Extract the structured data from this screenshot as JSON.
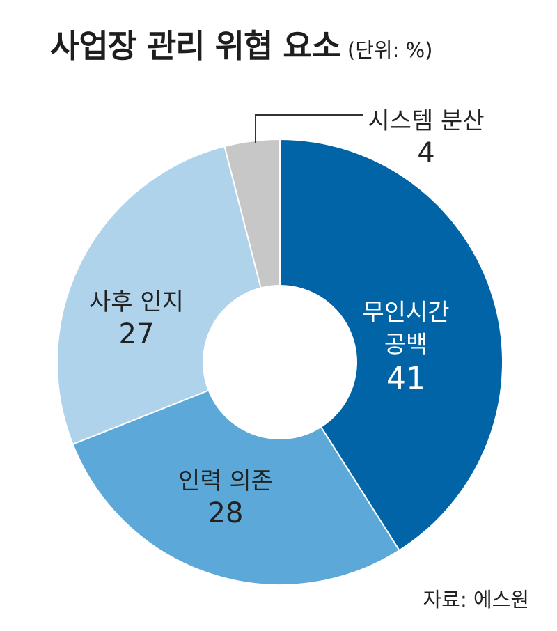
{
  "colors": {
    "dark_blue": "#0064a7",
    "mid_blue": "#5ca8d8",
    "light_blue": "#aed3eb",
    "gray": "#c7c7c7",
    "text_dark": "#222222",
    "text_light": "#ffffff"
  },
  "chart_data": {
    "type": "pie",
    "variant": "donut",
    "title": "사업장 관리 위협 요소",
    "unit": "(단위: %)",
    "source": "자료: 에스원",
    "slices": [
      {
        "label_lines": [
          "무인시간",
          "공백"
        ],
        "value": 41,
        "value_label": "41",
        "color": "#0064a7",
        "text_color": "#ffffff"
      },
      {
        "label_lines": [
          "인력 의존"
        ],
        "value": 28,
        "value_label": "28",
        "color": "#5ca8d8",
        "text_color": "#222222"
      },
      {
        "label_lines": [
          "사후 인지"
        ],
        "value": 27,
        "value_label": "27",
        "color": "#aed3eb",
        "text_color": "#222222"
      },
      {
        "label_lines": [
          "시스템 분산"
        ],
        "value": 4,
        "value_label": "4",
        "color": "#c7c7c7",
        "text_color": "#222222"
      }
    ],
    "start_angle_deg": 0,
    "direction": "clockwise",
    "legend": "none"
  }
}
